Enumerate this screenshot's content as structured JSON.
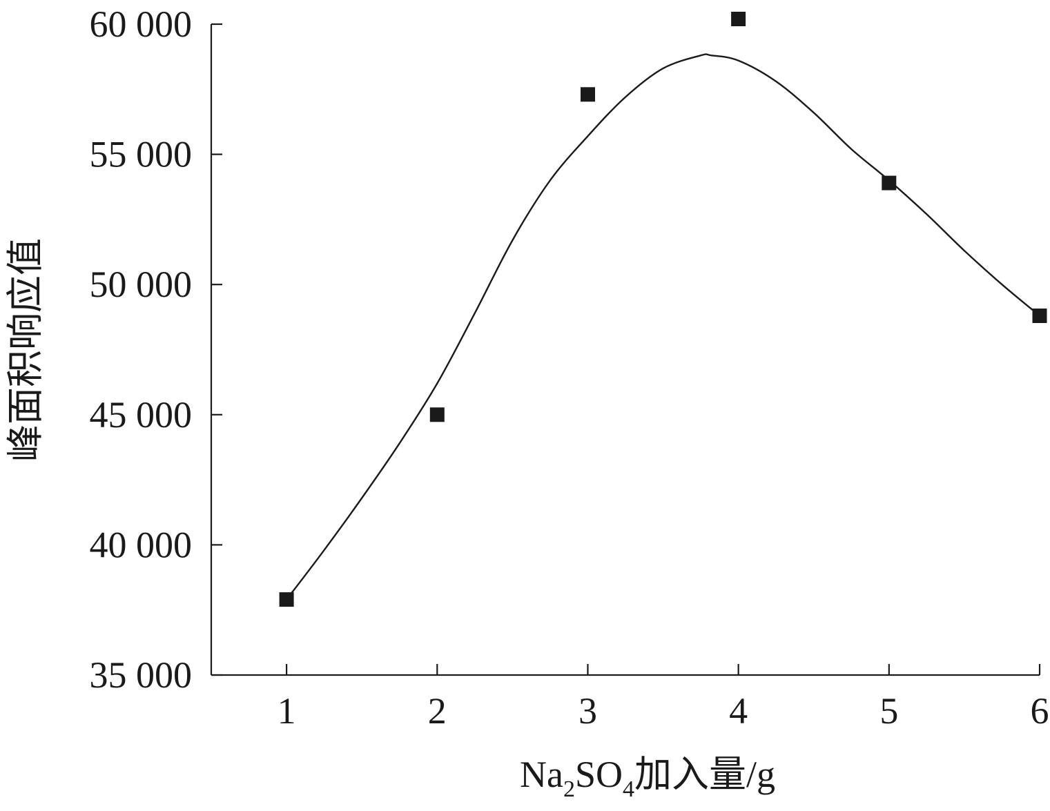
{
  "chart_data": {
    "type": "scatter",
    "xlabel_parts": {
      "prefix": "Na",
      "sub1": "2",
      "mid": "SO",
      "sub2": "4",
      "suffix": "加入量/g"
    },
    "ylabel": "峰面积响应值",
    "xlim": [
      0.5,
      6
    ],
    "ylim": [
      35000,
      60000
    ],
    "x_ticks": [
      1,
      2,
      3,
      4,
      5,
      6
    ],
    "x_tick_labels": [
      "1",
      "2",
      "3",
      "4",
      "5",
      "6"
    ],
    "y_ticks": [
      35000,
      40000,
      45000,
      50000,
      55000,
      60000
    ],
    "y_tick_labels": [
      "35 000",
      "40 000",
      "45 000",
      "50 000",
      "55 000",
      "60 000"
    ],
    "grid": false,
    "series": [
      {
        "marker": "square",
        "x": [
          1,
          2,
          3,
          4,
          5,
          6
        ],
        "y": [
          37900,
          45000,
          57300,
          60200,
          53900,
          48800
        ]
      }
    ],
    "fit_curve": {
      "x": [
        1,
        1.25,
        1.5,
        1.75,
        2,
        2.25,
        2.5,
        2.75,
        3,
        3.25,
        3.5,
        3.75,
        3.82,
        4,
        4.25,
        4.5,
        4.75,
        5,
        5.25,
        5.5,
        5.75,
        6
      ],
      "y": [
        37900,
        39800,
        41800,
        43900,
        46200,
        48900,
        51700,
        54000,
        55700,
        57200,
        58300,
        58800,
        58800,
        58600,
        57800,
        56600,
        55200,
        54000,
        52700,
        51300,
        50000,
        48800
      ]
    }
  }
}
